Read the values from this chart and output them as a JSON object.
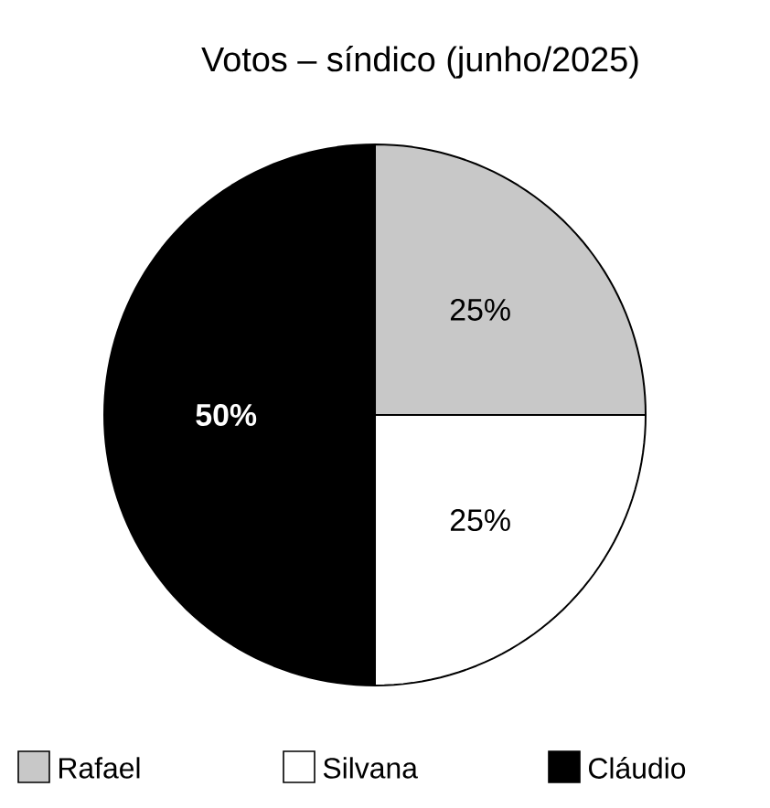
{
  "chart_data": {
    "type": "pie",
    "title": "Votos – síndico (junho/2025)",
    "categories": [
      "Rafael",
      "Silvana",
      "Cláudio"
    ],
    "values": [
      25,
      25,
      50
    ],
    "colors": [
      "#c8c8c8",
      "#ffffff",
      "#000000"
    ],
    "value_labels": [
      "25%",
      "25%",
      "50%"
    ],
    "legend": "bottom"
  }
}
